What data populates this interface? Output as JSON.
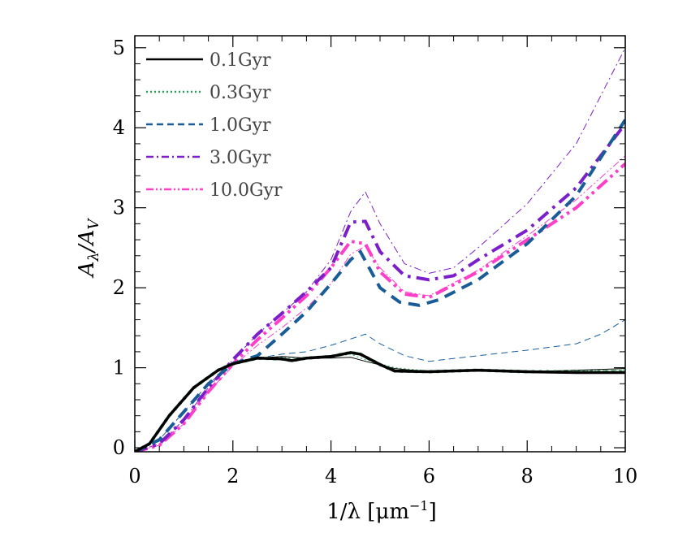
{
  "chart_data": {
    "type": "line",
    "xlabel_main": "1/λ [μm",
    "xlabel_sup": "−1",
    "xlabel_close": "]",
    "ylabel_main": "A",
    "ylabel_sub1": "λ",
    "ylabel_div": "/A",
    "ylabel_sub2": "V",
    "xlim": [
      0,
      10
    ],
    "ylim": [
      -0.05,
      5.15
    ],
    "xticks": [
      0,
      2,
      4,
      6,
      8,
      10
    ],
    "xtick_labels": [
      "0",
      "2",
      "4",
      "6",
      "8",
      "10"
    ],
    "yticks": [
      0,
      1,
      2,
      3,
      4,
      5
    ],
    "ytick_labels": [
      "0",
      "1",
      "2",
      "3",
      "4",
      "5"
    ],
    "legend_position": "top-left",
    "series": [
      {
        "name": "0.1Gyr",
        "color": "#000000",
        "dash": "solid",
        "thin": {
          "x": [
            0,
            0.3,
            0.7,
            1.2,
            1.7,
            2.0,
            2.5,
            3.0,
            3.5,
            4.0,
            4.4,
            4.7,
            5.3,
            6.0,
            7.0,
            8.0,
            9.0,
            10.0
          ],
          "y": [
            -0.05,
            0.05,
            0.4,
            0.75,
            0.97,
            1.06,
            1.12,
            1.14,
            1.12,
            1.12,
            1.13,
            1.08,
            0.99,
            0.95,
            0.96,
            0.95,
            0.97,
            0.99
          ]
        },
        "thick": {
          "x": [
            0,
            0.3,
            0.7,
            1.2,
            1.7,
            2.0,
            2.5,
            3.0,
            3.2,
            3.5,
            4.0,
            4.4,
            4.6,
            5.0,
            5.3,
            6.0,
            7.0,
            8.0,
            9.0,
            10.0
          ],
          "y": [
            -0.05,
            0.05,
            0.4,
            0.75,
            0.97,
            1.05,
            1.12,
            1.11,
            1.09,
            1.12,
            1.14,
            1.19,
            1.17,
            1.04,
            0.96,
            0.95,
            0.97,
            0.95,
            0.94,
            0.94
          ]
        }
      },
      {
        "name": "0.3Gyr",
        "color": "#2ca05a",
        "dash": "dotted",
        "thin": {
          "x": [
            0,
            0.3,
            0.7,
            1.2,
            1.7,
            2.0,
            2.5,
            3.0,
            3.5,
            4.0,
            4.4,
            4.7,
            5.3,
            6.0,
            7.0,
            8.0,
            9.0,
            10.0
          ],
          "y": [
            -0.05,
            0.05,
            0.4,
            0.75,
            0.97,
            1.06,
            1.12,
            1.13,
            1.12,
            1.13,
            1.17,
            1.1,
            1.0,
            0.96,
            0.97,
            0.96,
            0.96,
            0.97
          ]
        },
        "thick": {
          "x": [
            0,
            0.3,
            0.7,
            1.2,
            1.7,
            2.0,
            2.5,
            3.0,
            3.2,
            3.5,
            4.0,
            4.4,
            4.6,
            5.0,
            5.3,
            6.0,
            7.0,
            8.0,
            9.0,
            10.0
          ],
          "y": [
            -0.05,
            0.05,
            0.4,
            0.75,
            0.97,
            1.05,
            1.12,
            1.11,
            1.09,
            1.12,
            1.14,
            1.19,
            1.17,
            1.04,
            0.96,
            0.95,
            0.97,
            0.95,
            0.95,
            0.95
          ]
        }
      },
      {
        "name": "1.0Gyr",
        "color": "#1a5c96",
        "dash": "dashed",
        "thin": {
          "x": [
            0,
            0.5,
            1.0,
            1.5,
            2.0,
            2.5,
            3.0,
            3.5,
            4.0,
            4.4,
            4.7,
            5.0,
            5.5,
            6.0,
            7.0,
            8.0,
            9.0,
            9.5,
            10.0
          ],
          "y": [
            -0.05,
            0.1,
            0.45,
            0.8,
            1.04,
            1.12,
            1.17,
            1.2,
            1.28,
            1.36,
            1.42,
            1.3,
            1.15,
            1.08,
            1.15,
            1.22,
            1.3,
            1.42,
            1.6
          ]
        },
        "thick": {
          "x": [
            0,
            0.5,
            1.0,
            1.5,
            2.0,
            2.5,
            3.0,
            3.5,
            4.0,
            4.4,
            4.6,
            5.0,
            5.4,
            5.8,
            6.2,
            7.0,
            8.0,
            9.0,
            10.0
          ],
          "y": [
            -0.05,
            0.1,
            0.45,
            0.8,
            1.05,
            1.15,
            1.42,
            1.7,
            2.05,
            2.35,
            2.45,
            2.0,
            1.82,
            1.78,
            1.85,
            2.1,
            2.55,
            3.15,
            4.1
          ]
        }
      },
      {
        "name": "3.0Gyr",
        "color": "#7b1fc8",
        "dash": "dashdot",
        "thin": {
          "x": [
            0,
            0.5,
            1.0,
            1.5,
            2.0,
            2.5,
            3.0,
            3.5,
            4.0,
            4.4,
            4.7,
            5.0,
            5.5,
            6.0,
            6.5,
            7.0,
            8.0,
            9.0,
            10.0
          ],
          "y": [
            -0.05,
            0.05,
            0.35,
            0.75,
            1.1,
            1.42,
            1.68,
            1.95,
            2.35,
            2.95,
            3.2,
            2.8,
            2.3,
            2.18,
            2.25,
            2.5,
            3.05,
            3.8,
            5.0
          ]
        },
        "thick": {
          "x": [
            0,
            0.5,
            1.0,
            1.5,
            2.0,
            2.5,
            3.0,
            3.5,
            4.0,
            4.4,
            4.7,
            5.0,
            5.5,
            6.0,
            6.5,
            7.0,
            8.0,
            9.0,
            10.0
          ],
          "y": [
            -0.05,
            0.05,
            0.35,
            0.75,
            1.1,
            1.42,
            1.68,
            1.95,
            2.25,
            2.82,
            2.83,
            2.45,
            2.15,
            2.1,
            2.15,
            2.35,
            2.72,
            3.25,
            4.05
          ]
        }
      },
      {
        "name": "10.0Gyr",
        "color": "#ff3fc8",
        "dash": "dashdotdot",
        "thin": {
          "x": [
            0,
            0.5,
            1.0,
            1.5,
            2.0,
            2.5,
            3.0,
            3.5,
            4.0,
            4.4,
            4.7,
            5.0,
            5.5,
            6.0,
            7.0,
            8.0,
            9.0,
            10.0
          ],
          "y": [
            -0.05,
            0.03,
            0.3,
            0.7,
            1.02,
            1.28,
            1.5,
            1.75,
            2.05,
            2.42,
            2.52,
            2.25,
            1.95,
            1.9,
            2.22,
            2.65,
            3.1,
            3.65
          ]
        },
        "thick": {
          "x": [
            0,
            0.5,
            1.0,
            1.5,
            2.0,
            2.5,
            3.0,
            3.5,
            4.0,
            4.4,
            4.7,
            5.0,
            5.5,
            6.0,
            7.0,
            8.0,
            9.0,
            10.0
          ],
          "y": [
            -0.05,
            0.03,
            0.3,
            0.7,
            1.05,
            1.35,
            1.62,
            1.9,
            2.25,
            2.58,
            2.55,
            2.2,
            1.92,
            1.88,
            2.2,
            2.6,
            3.0,
            3.55
          ]
        }
      }
    ]
  }
}
